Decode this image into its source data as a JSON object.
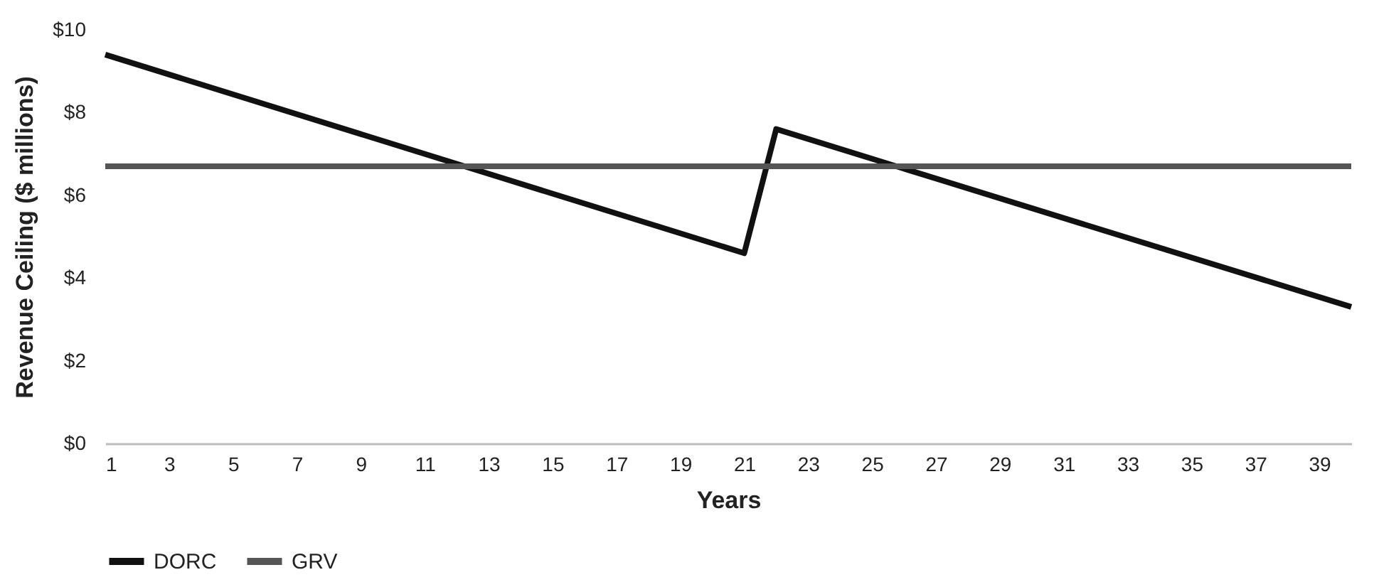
{
  "chart_data": {
    "type": "line",
    "xlabel": "Years",
    "ylabel": "Revenue Ceiling ($ millions)",
    "series": [
      {
        "name": "DORC",
        "color": "#111111",
        "x": [
          1,
          21,
          22,
          40
        ],
        "values": [
          9.4,
          4.6,
          7.6,
          3.3
        ]
      },
      {
        "name": "GRV",
        "color": "#555555",
        "x": [
          1,
          40
        ],
        "values": [
          6.7,
          6.7
        ]
      }
    ],
    "xlim": [
      1,
      40
    ],
    "xticks": [
      1,
      3,
      5,
      7,
      9,
      11,
      13,
      15,
      17,
      19,
      21,
      23,
      25,
      27,
      29,
      31,
      33,
      35,
      37,
      39
    ],
    "ylim": [
      0,
      10
    ],
    "yticks": [
      {
        "value": 0,
        "label": "$0"
      },
      {
        "value": 2,
        "label": "$2"
      },
      {
        "value": 4,
        "label": "$4"
      },
      {
        "value": 6,
        "label": "$6"
      },
      {
        "value": 8,
        "label": "$8"
      },
      {
        "value": 10,
        "label": "$10"
      }
    ],
    "grid": false,
    "legend": "bottom",
    "marker": "none",
    "line_style": "solid"
  }
}
